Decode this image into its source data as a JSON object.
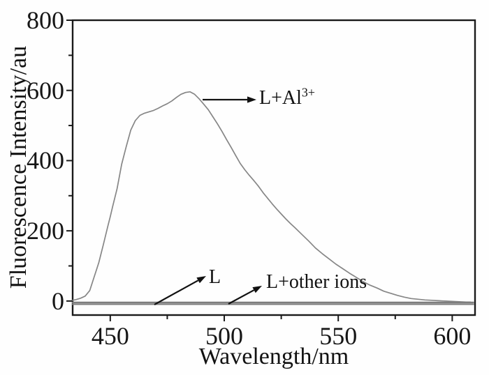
{
  "chart_data": {
    "type": "line",
    "title": "",
    "xlabel": "Wavelength/nm",
    "ylabel": "Fluorescence Intensity/au",
    "xlim": [
      433.5,
      610
    ],
    "ylim": [
      -40,
      800
    ],
    "x_ticks": [
      450,
      500,
      550,
      600
    ],
    "x_minor_ticks": [
      475,
      525,
      575
    ],
    "y_ticks": [
      0,
      200,
      400,
      600,
      800
    ],
    "y_minor_ticks": [
      100,
      300,
      500,
      700
    ],
    "grid": false,
    "legend_position": "none",
    "axis_color": "#1a1a1a",
    "annotation_color": "#111111",
    "series": [
      {
        "name": "L+Al3+",
        "color": "#868686",
        "width": 1.7,
        "points": [
          [
            433.5,
            2
          ],
          [
            435,
            4
          ],
          [
            437,
            8
          ],
          [
            439,
            14
          ],
          [
            441,
            30
          ],
          [
            443,
            70
          ],
          [
            444,
            90
          ],
          [
            445,
            110
          ],
          [
            447,
            162
          ],
          [
            449,
            215
          ],
          [
            450,
            240
          ],
          [
            451,
            268
          ],
          [
            453,
            320
          ],
          [
            455,
            390
          ],
          [
            457,
            440
          ],
          [
            459,
            487
          ],
          [
            461,
            514
          ],
          [
            463,
            529
          ],
          [
            465,
            535
          ],
          [
            467,
            539
          ],
          [
            469,
            543
          ],
          [
            471,
            549
          ],
          [
            473,
            556
          ],
          [
            475,
            562
          ],
          [
            477,
            570
          ],
          [
            479,
            580
          ],
          [
            481,
            589
          ],
          [
            483,
            594
          ],
          [
            485,
            596
          ],
          [
            487,
            589
          ],
          [
            489,
            576
          ],
          [
            491,
            561
          ],
          [
            493,
            545
          ],
          [
            495,
            525
          ],
          [
            497,
            505
          ],
          [
            499,
            483
          ],
          [
            501,
            460
          ],
          [
            503,
            438
          ],
          [
            505,
            415
          ],
          [
            507,
            392
          ],
          [
            509,
            374
          ],
          [
            511,
            358
          ],
          [
            513,
            343
          ],
          [
            515,
            327
          ],
          [
            517,
            309
          ],
          [
            519,
            293
          ],
          [
            521,
            277
          ],
          [
            523,
            262
          ],
          [
            525,
            248
          ],
          [
            527,
            234
          ],
          [
            529,
            221
          ],
          [
            531,
            209
          ],
          [
            534,
            190
          ],
          [
            537,
            171
          ],
          [
            540,
            151
          ],
          [
            543,
            135
          ],
          [
            546,
            120
          ],
          [
            549,
            105
          ],
          [
            552,
            92
          ],
          [
            555,
            79
          ],
          [
            558,
            67
          ],
          [
            561,
            55
          ],
          [
            564,
            45
          ],
          [
            567,
            37
          ],
          [
            570,
            28
          ],
          [
            573,
            22
          ],
          [
            576,
            16
          ],
          [
            579,
            11
          ],
          [
            582,
            7
          ],
          [
            585,
            5
          ],
          [
            588,
            3
          ],
          [
            591,
            2
          ],
          [
            594,
            1
          ],
          [
            597,
            0
          ],
          [
            600,
            -1
          ],
          [
            603,
            -2
          ],
          [
            606,
            -3
          ],
          [
            608,
            -3
          ]
        ]
      },
      {
        "name": "L",
        "color": "#7d7d7d",
        "width": 2.2,
        "points": [
          [
            433.5,
            -4
          ],
          [
            609.3,
            -4
          ]
        ]
      },
      {
        "name": "L+other ions",
        "color": "#7d7d7d",
        "width": 2.2,
        "points": [
          [
            433.5,
            -9
          ],
          [
            609.3,
            -9
          ]
        ]
      }
    ],
    "annotations": [
      {
        "text": "L+Al",
        "sup": "3+"
      },
      {
        "text": "L",
        "sup": ""
      },
      {
        "text": "L+other ions",
        "sup": ""
      }
    ]
  }
}
